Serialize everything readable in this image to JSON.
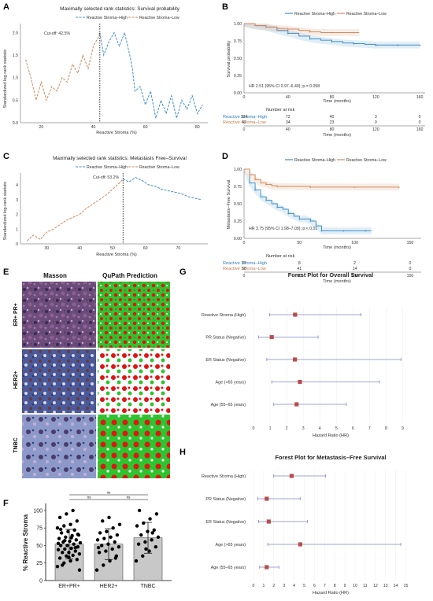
{
  "panels": {
    "A": {
      "letter": "A",
      "title": "Maximally selected rank statistics: Survival probability",
      "legend": [
        "Reactive Stroma–High",
        "Reactive Stroma–Low"
      ],
      "cutoff_label": "Cut-off: 42.5%",
      "xlabel": "Reactive Stroma (%)",
      "ylabel": "Standardized log-rank statistic",
      "xticks": [
        "20",
        "40",
        "60",
        "80"
      ],
      "yticks": [
        "0.0",
        "0.5",
        "1.0",
        "1.5",
        "2.0"
      ]
    },
    "B": {
      "letter": "B",
      "legend": [
        "Reactive Stroma–High",
        "Reactive Stroma–Low"
      ],
      "ylabel": "Survival probability",
      "xlabel": "Time (months)",
      "yticks": [
        "0.00",
        "0.25",
        "0.50",
        "0.75",
        "1.00"
      ],
      "xticks": [
        "0",
        "40",
        "80",
        "120",
        "160"
      ],
      "hr_text": "HR 2.51 (95% CI 0.97–6.49); p = 0.058",
      "risk_title": "Number at risk",
      "risk_rows": [
        {
          "label": "Reactive Stroma–High",
          "values": [
            "104",
            "72",
            "40",
            "3",
            "0"
          ]
        },
        {
          "label": "Reactive Stroma–Low",
          "values": [
            "42",
            "34",
            "23",
            "0",
            "0"
          ]
        }
      ],
      "risk_xlabel": "Time (months)"
    },
    "C": {
      "letter": "C",
      "title": "Maximally selected rank statistics: Metastasis Free–Survival",
      "legend": [
        "Reactive Stroma–High",
        "Reactive Stroma–Low"
      ],
      "cutoff_label": "Cut-off: 53.2%",
      "xlabel": "Reactive Stroma (%)",
      "ylabel": "Standardized log-rank statistic",
      "xticks": [
        "30",
        "40",
        "50",
        "60",
        "70"
      ],
      "yticks": [
        "0",
        "1",
        "2",
        "3",
        "4"
      ]
    },
    "D": {
      "letter": "D",
      "legend": [
        "Reactive Stroma–High",
        "Reactive Stroma–Low"
      ],
      "ylabel": "Metastasis–Free Survival",
      "xlabel": "Time (months)",
      "yticks": [
        "0.00",
        "0.25",
        "0.50",
        "0.75",
        "1.00"
      ],
      "xticks": [
        "0",
        "50",
        "100",
        "150"
      ],
      "hr_text": "HR 3.75 (95% CI 1.98–7.09); p < 0.01",
      "risk_title": "Number at risk",
      "risk_rows": [
        {
          "label": "Reactive Stroma–High",
          "values": [
            "27",
            "8",
            "2",
            "0"
          ]
        },
        {
          "label": "Reactive Stroma–Low",
          "values": [
            "58",
            "41",
            "14",
            "0"
          ]
        }
      ],
      "risk_xlabel": "Time (months)"
    },
    "E": {
      "letter": "E",
      "col_headers": [
        "Masson",
        "QuPath Prediction"
      ],
      "row_labels": [
        "ER+ PR+",
        "HER2+",
        "TNBC"
      ]
    },
    "F": {
      "letter": "F",
      "ylabel": "% Reactive Stroma",
      "yticks": [
        "0",
        "25",
        "50",
        "75",
        "100"
      ],
      "sig": [
        "ns",
        "ns",
        "ns"
      ]
    },
    "G": {
      "letter": "G",
      "title": "Forest Plot for Overall Survival",
      "xlabel": "Hazard Ratio (HR)",
      "xticks": [
        "0",
        "1",
        "2",
        "3",
        "4",
        "5",
        "6",
        "7",
        "8",
        "9"
      ]
    },
    "H": {
      "letter": "H",
      "title": "Forest Plot for Metastasis–Free Survival",
      "xlabel": "Hazard Ratio (HR)",
      "xticks": [
        "0",
        "1",
        "2",
        "3",
        "4",
        "5",
        "6",
        "7",
        "8",
        "9",
        "10",
        "11",
        "12",
        "13",
        "14",
        "15"
      ]
    }
  },
  "colors": {
    "high": "#3d8fc8",
    "low": "#d1885a",
    "forest_point": "#b0332f",
    "forest_ci": "#7f86c8",
    "qupath_green": "#2fc42f",
    "qupath_red": "#e01515"
  },
  "chart_data": [
    {
      "id": "A",
      "type": "line",
      "title": "Maximally selected rank statistics: Survival probability",
      "xlabel": "Reactive Stroma (%)",
      "ylabel": "Standardized log-rank statistic",
      "xlim": [
        12,
        84
      ],
      "ylim": [
        0,
        2.2
      ],
      "cutoff": 42.5,
      "series": [
        {
          "name": "Reactive Stroma–Low",
          "x": [
            14,
            16,
            18,
            20,
            22,
            24,
            26,
            28,
            30,
            32,
            34,
            36,
            38,
            40,
            42,
            42.5
          ],
          "y": [
            1.4,
            1.0,
            0.5,
            0.9,
            0.5,
            0.8,
            0.7,
            1.0,
            0.9,
            1.3,
            1.1,
            1.5,
            1.2,
            1.7,
            1.9,
            2.0
          ]
        },
        {
          "name": "Reactive Stroma–High",
          "x": [
            42.5,
            44,
            46,
            48,
            50,
            52,
            54,
            55,
            56,
            58,
            60,
            62,
            64,
            66,
            68,
            70,
            72,
            74,
            76,
            78,
            80,
            82
          ],
          "y": [
            2.0,
            1.5,
            1.8,
            2.0,
            1.7,
            2.0,
            1.5,
            1.2,
            0.7,
            0.8,
            0.4,
            0.7,
            0.1,
            0.5,
            0.2,
            0.6,
            0.1,
            0.5,
            0.3,
            0.6,
            0.2,
            0.4
          ]
        }
      ]
    },
    {
      "id": "B",
      "type": "line",
      "ylabel": "Survival probability",
      "xlabel": "Time (months)",
      "xlim": [
        0,
        165
      ],
      "ylim": [
        0,
        1
      ],
      "series": [
        {
          "name": "Reactive Stroma–High",
          "x": [
            0,
            10,
            20,
            30,
            40,
            50,
            60,
            70,
            80,
            90,
            100,
            110,
            120,
            130,
            140,
            150,
            160
          ],
          "y": [
            1.0,
            0.97,
            0.95,
            0.9,
            0.86,
            0.82,
            0.78,
            0.76,
            0.74,
            0.72,
            0.71,
            0.7,
            0.69,
            0.69,
            0.69,
            0.69,
            0.69
          ]
        },
        {
          "name": "Reactive Stroma–Low",
          "x": [
            0,
            10,
            20,
            30,
            40,
            50,
            60,
            70,
            80,
            90,
            100,
            105
          ],
          "y": [
            1.0,
            0.97,
            0.95,
            0.93,
            0.92,
            0.9,
            0.88,
            0.87,
            0.87,
            0.87,
            0.87,
            0.87
          ]
        }
      ]
    },
    {
      "id": "C",
      "type": "line",
      "title": "Maximally selected rank statistics: Metastasis Free–Survival",
      "xlabel": "Reactive Stroma (%)",
      "ylabel": "Standardized log-rank statistic",
      "xlim": [
        22,
        79
      ],
      "ylim": [
        0,
        4.8
      ],
      "cutoff": 53.2,
      "series": [
        {
          "name": "Reactive Stroma–Low",
          "x": [
            24,
            26,
            28,
            30,
            32,
            34,
            36,
            38,
            40,
            42,
            44,
            46,
            48,
            50,
            52,
            53.2
          ],
          "y": [
            0.2,
            0.6,
            0.3,
            0.8,
            1.0,
            1.3,
            1.6,
            1.8,
            2.0,
            2.4,
            2.7,
            3.0,
            3.3,
            3.7,
            4.1,
            4.4
          ]
        },
        {
          "name": "Reactive Stroma–High",
          "x": [
            53.2,
            55,
            57,
            59,
            61,
            63,
            65,
            67,
            69,
            71,
            73,
            75,
            77
          ],
          "y": [
            4.4,
            4.2,
            4.5,
            4.3,
            4.0,
            3.9,
            3.7,
            3.6,
            3.5,
            3.4,
            3.2,
            3.1,
            3.0
          ]
        }
      ]
    },
    {
      "id": "D",
      "type": "line",
      "ylabel": "Metastasis–Free Survival",
      "xlabel": "Time (months)",
      "xlim": [
        0,
        160
      ],
      "ylim": [
        0,
        1
      ],
      "series": [
        {
          "name": "Reactive Stroma–High",
          "x": [
            0,
            5,
            10,
            15,
            20,
            25,
            30,
            35,
            40,
            45,
            50,
            55,
            60,
            65,
            70,
            80,
            90,
            100,
            110,
            115
          ],
          "y": [
            1.0,
            0.8,
            0.7,
            0.6,
            0.55,
            0.5,
            0.45,
            0.42,
            0.36,
            0.32,
            0.28,
            0.28,
            0.25,
            0.18,
            0.11,
            0.11,
            0.11,
            0.11,
            0.11,
            0.11
          ]
        },
        {
          "name": "Reactive Stroma–Low",
          "x": [
            0,
            5,
            10,
            15,
            20,
            25,
            30,
            40,
            60,
            80,
            100,
            120,
            140
          ],
          "y": [
            1.0,
            0.92,
            0.85,
            0.8,
            0.78,
            0.76,
            0.75,
            0.75,
            0.74,
            0.74,
            0.74,
            0.74,
            0.74
          ]
        }
      ]
    },
    {
      "id": "F",
      "type": "bar",
      "categories": [
        "ER+PR+",
        "HER2+",
        "TNBC"
      ],
      "values": [
        52,
        52,
        61
      ],
      "errors": [
        21,
        22,
        22
      ],
      "ylabel": "% Reactive Stroma",
      "ylim": [
        0,
        100
      ],
      "points": [
        [
          20,
          25,
          28,
          30,
          32,
          35,
          36,
          38,
          40,
          40,
          42,
          44,
          45,
          46,
          48,
          50,
          50,
          52,
          54,
          55,
          56,
          58,
          60,
          62,
          64,
          65,
          68,
          70,
          72,
          75,
          78,
          80,
          85,
          90,
          95,
          100,
          15,
          22,
          33,
          47,
          53,
          57,
          61,
          66,
          73
        ],
        [
          15,
          22,
          28,
          35,
          40,
          42,
          45,
          48,
          50,
          52,
          55,
          58,
          60,
          62,
          65,
          68,
          70,
          75,
          80,
          85,
          90,
          32,
          47
        ],
        [
          28,
          35,
          42,
          48,
          52,
          55,
          58,
          62,
          65,
          70,
          72,
          78,
          82,
          88,
          95,
          100,
          45,
          68
        ]
      ]
    },
    {
      "id": "G",
      "type": "forest",
      "title": "Forest Plot for Overall Survival",
      "xlabel": "Hazard Ratio (HR)",
      "xlim": [
        0,
        9.5
      ],
      "rows": [
        {
          "label": "Reactive Stroma (High)",
          "hr": 2.51,
          "lo": 0.97,
          "hi": 6.49
        },
        {
          "label": "PR Status (Negative)",
          "hr": 1.1,
          "lo": 0.3,
          "hi": 3.9
        },
        {
          "label": "ER Status (Negative)",
          "hr": 2.5,
          "lo": 0.8,
          "hi": 8.9
        },
        {
          "label": "Age (>65 years)",
          "hr": 2.8,
          "lo": 1.1,
          "hi": 7.6
        },
        {
          "label": "Age (55–65 years)",
          "hr": 2.6,
          "lo": 1.2,
          "hi": 5.6
        }
      ]
    },
    {
      "id": "H",
      "type": "forest",
      "title": "Forest Plot for Metastasis–Free Survival",
      "xlabel": "Hazard Ratio (HR)",
      "xlim": [
        0,
        15.5
      ],
      "rows": [
        {
          "label": "Reactive Stroma (High)",
          "hr": 3.75,
          "lo": 1.98,
          "hi": 7.09
        },
        {
          "label": "PR Status (Negative)",
          "hr": 1.3,
          "lo": 0.4,
          "hi": 4.6
        },
        {
          "label": "ER Status (Negative)",
          "hr": 1.5,
          "lo": 0.5,
          "hi": 5.3
        },
        {
          "label": "Age (>65 years)",
          "hr": 4.6,
          "lo": 1.4,
          "hi": 14.5
        },
        {
          "label": "Age (55–65 years)",
          "hr": 1.3,
          "lo": 0.6,
          "hi": 2.5
        }
      ]
    }
  ]
}
